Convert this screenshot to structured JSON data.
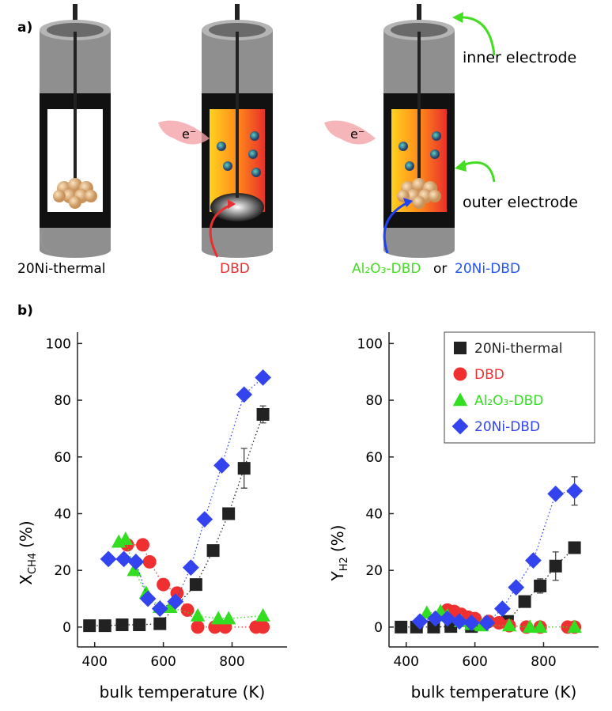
{
  "diagram": {
    "panel_a": "a)",
    "panel_b": "b)",
    "inner_electrode": "inner electrode",
    "outer_electrode": "outer electrode",
    "electron_1": "e⁻",
    "electron_2": "e⁻",
    "label_thermal": "20Ni-thermal",
    "label_dbd": "DBD",
    "label_al2o3": "Al₂O₃-DBD",
    "label_or": "or",
    "label_ni_dbd": "20Ni-DBD"
  },
  "chart_data": [
    {
      "type": "scatter",
      "xlabel": "bulk temperature (K)",
      "ylabel": [
        "X",
        "CH4",
        "(%)"
      ],
      "xlim": [
        350,
        960
      ],
      "ylim": [
        -7,
        104
      ],
      "xticks": [
        400,
        600,
        800
      ],
      "yticks": [
        0,
        20,
        40,
        60,
        80,
        100
      ],
      "series": [
        {
          "name": "20Ni-thermal",
          "color": "#222222",
          "marker": "square",
          "linestyle": "dotted",
          "x": [
            385,
            430,
            480,
            530,
            590,
            695,
            745,
            790,
            835,
            890
          ],
          "values": [
            0.5,
            0.5,
            0.8,
            0.8,
            1.2,
            15,
            27,
            40,
            56,
            75
          ],
          "errors": [
            null,
            null,
            null,
            null,
            null,
            null,
            null,
            null,
            7,
            3
          ]
        },
        {
          "name": "DBD",
          "color": "#f03030",
          "marker": "circle",
          "linestyle": "dotted",
          "x": [
            495,
            540,
            560,
            600,
            640,
            670,
            700,
            750,
            780,
            870,
            890
          ],
          "values": [
            29,
            29,
            23,
            15,
            12,
            6,
            0,
            0,
            0,
            0,
            0
          ]
        },
        {
          "name": "Al₂O₃-DBD",
          "color": "#33dd22",
          "marker": "triangle",
          "linestyle": "dotted",
          "x": [
            470,
            490,
            515,
            550,
            590,
            620,
            700,
            760,
            790,
            890
          ],
          "values": [
            30,
            31,
            20,
            12,
            7,
            7,
            4,
            3,
            3,
            4
          ]
        },
        {
          "name": "20Ni-DBD",
          "color": "#3344ee",
          "marker": "diamond",
          "linestyle": "dotted",
          "x": [
            440,
            485,
            520,
            555,
            590,
            635,
            680,
            720,
            770,
            835,
            890
          ],
          "values": [
            24,
            24,
            23,
            10,
            6.5,
            9,
            21,
            38,
            57,
            82,
            88
          ]
        }
      ]
    },
    {
      "type": "scatter",
      "xlabel": "bulk temperature (K)",
      "ylabel": [
        "Y",
        "H2",
        "(%)"
      ],
      "legend": "upper right",
      "xlim": [
        350,
        960
      ],
      "ylim": [
        -7,
        104
      ],
      "xticks": [
        400,
        600,
        800
      ],
      "yticks": [
        0,
        20,
        40,
        60,
        80,
        100
      ],
      "series": [
        {
          "name": "20Ni-thermal",
          "color": "#222222",
          "marker": "square",
          "linestyle": "dotted",
          "x": [
            385,
            430,
            480,
            530,
            590,
            695,
            745,
            790,
            835,
            890
          ],
          "values": [
            0,
            0,
            0,
            0.2,
            0.2,
            2,
            9,
            14.5,
            21.5,
            28
          ],
          "errors": [
            null,
            null,
            null,
            null,
            null,
            null,
            null,
            2.5,
            5,
            2
          ]
        },
        {
          "name": "DBD",
          "color": "#f03030",
          "marker": "circle",
          "linestyle": "dotted",
          "x": [
            520,
            540,
            560,
            580,
            600,
            640,
            670,
            700,
            750,
            790,
            870,
            890
          ],
          "values": [
            6,
            5.5,
            4.5,
            3.5,
            3,
            2,
            1.5,
            0.5,
            0,
            0,
            0,
            0
          ]
        },
        {
          "name": "Al₂O₃-DBD",
          "color": "#33dd22",
          "marker": "triangle",
          "linestyle": "dotted",
          "x": [
            460,
            500,
            520,
            560,
            590,
            620,
            700,
            760,
            790,
            890
          ],
          "values": [
            5,
            5.5,
            4,
            2,
            1,
            0.5,
            0.5,
            0,
            0,
            0
          ]
        },
        {
          "name": "20Ni-DBD",
          "color": "#3344ee",
          "marker": "diamond",
          "linestyle": "dotted",
          "x": [
            440,
            485,
            520,
            555,
            590,
            635,
            680,
            720,
            770,
            835,
            890
          ],
          "values": [
            2,
            3,
            3,
            2,
            1.5,
            1.5,
            6.5,
            14,
            23.5,
            47,
            48
          ],
          "errors": [
            null,
            null,
            null,
            null,
            null,
            null,
            null,
            null,
            null,
            null,
            5
          ]
        }
      ]
    }
  ]
}
